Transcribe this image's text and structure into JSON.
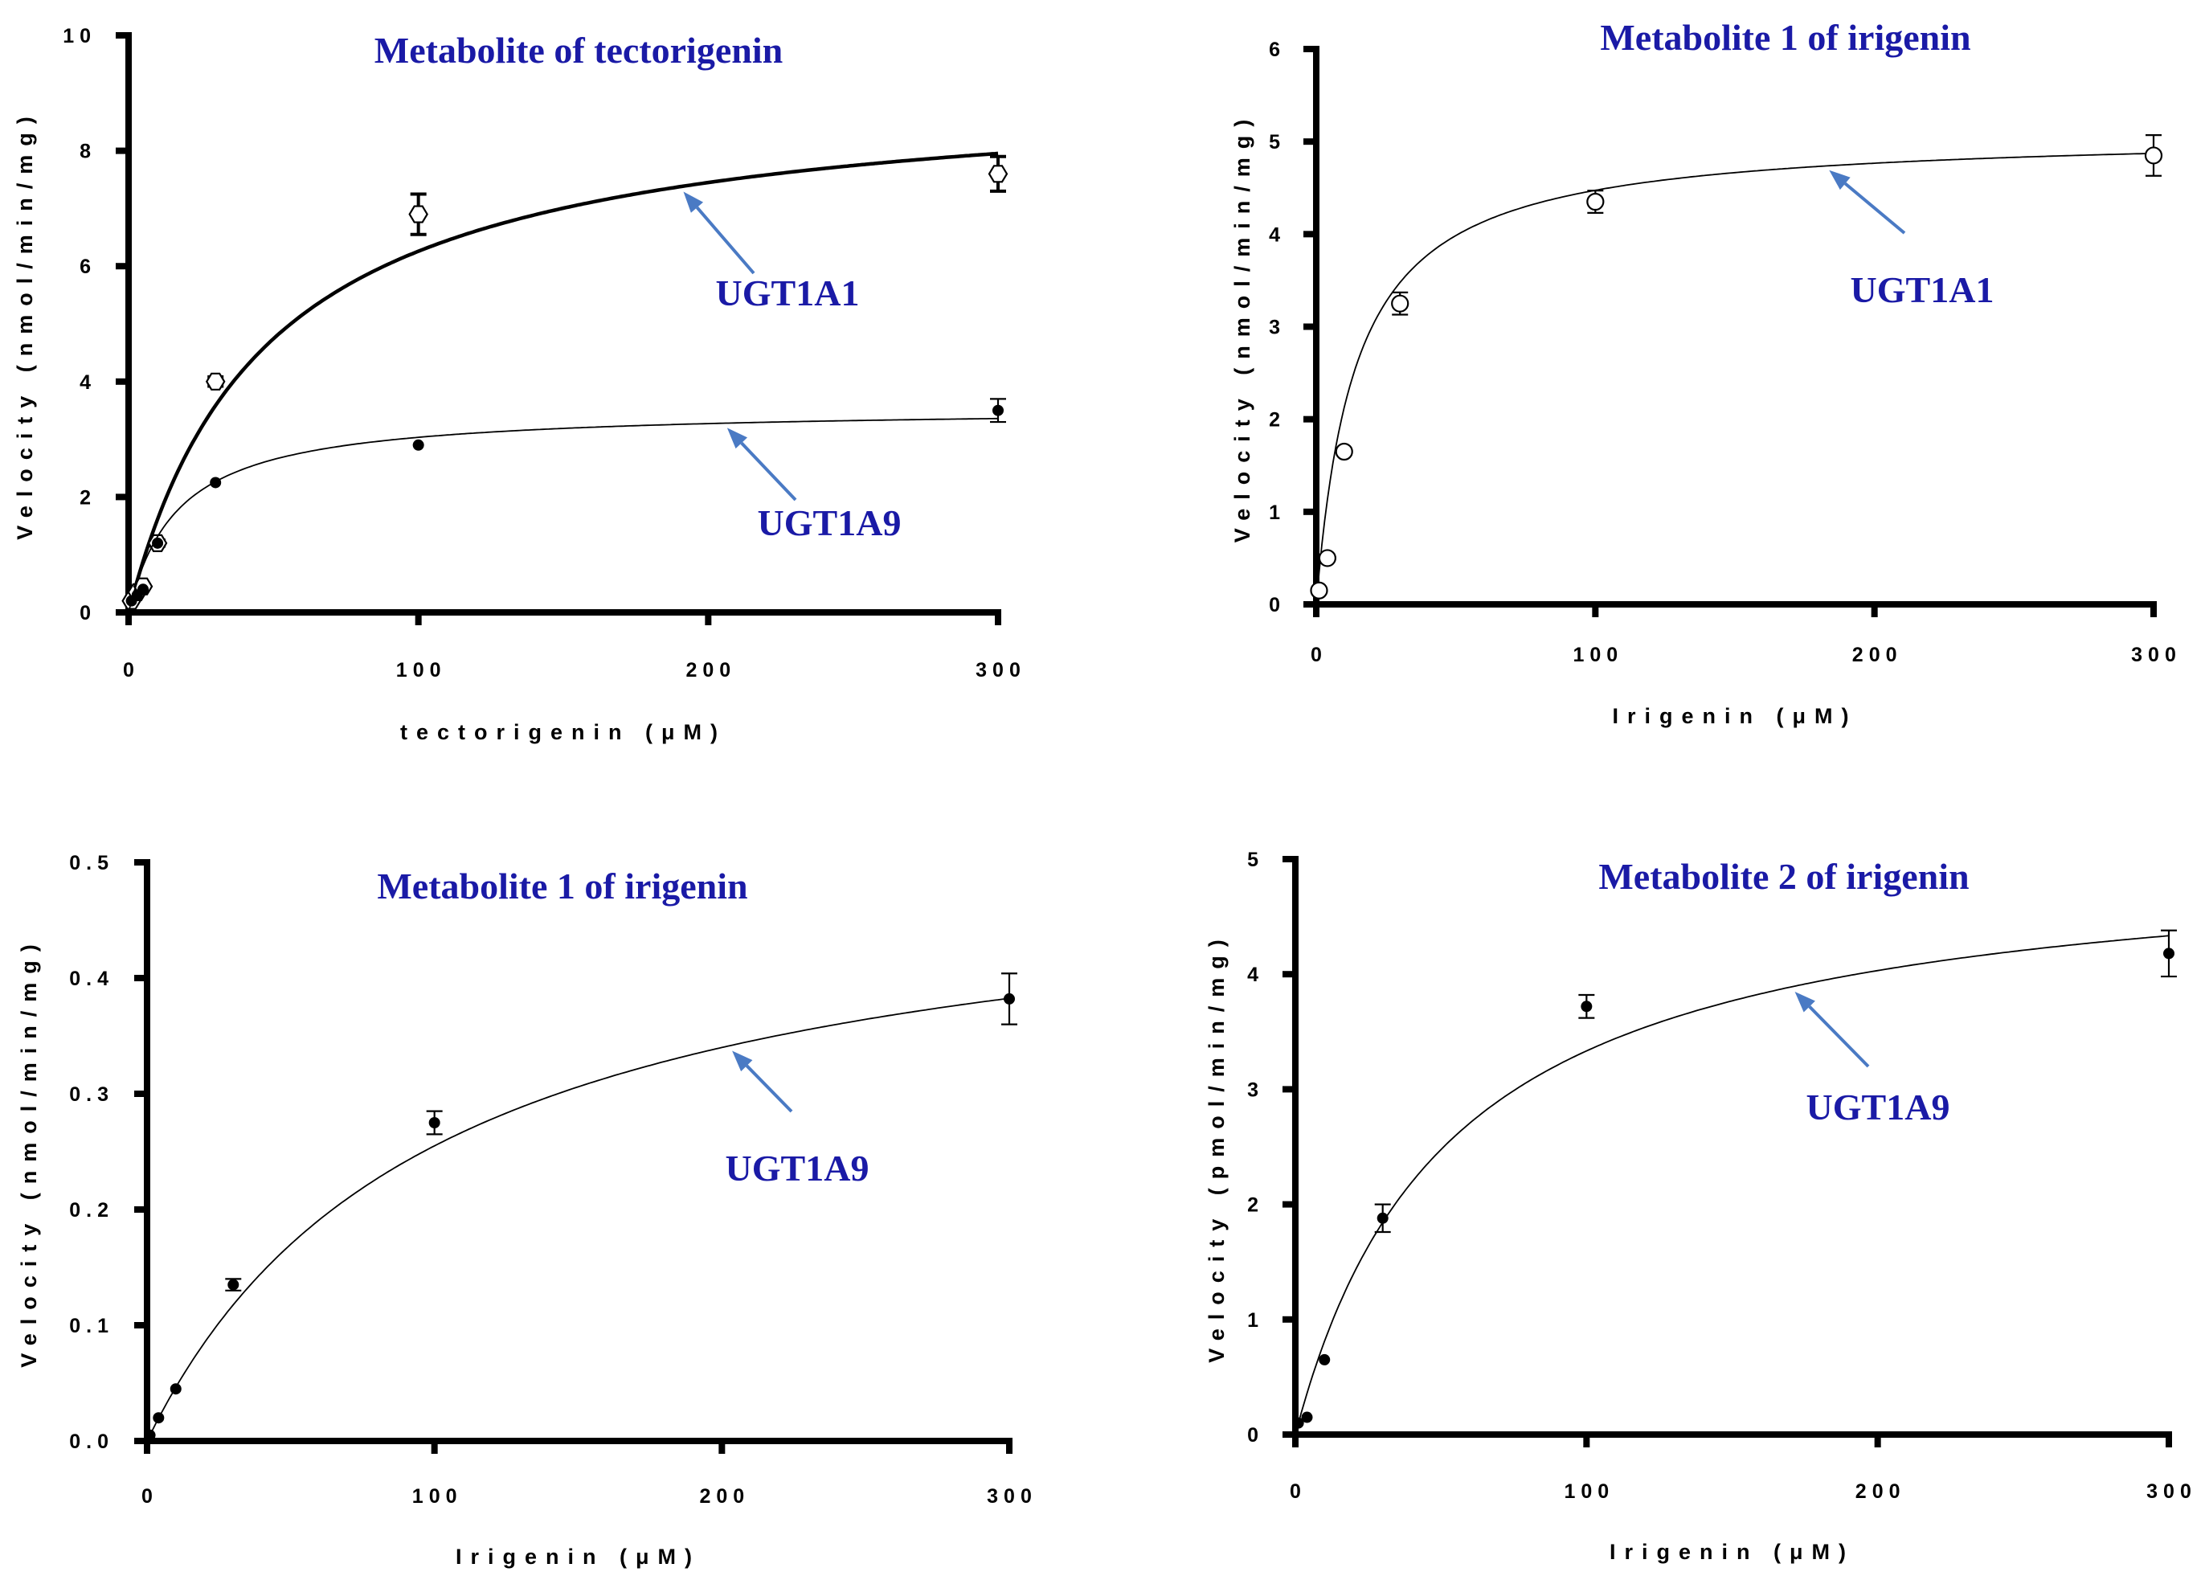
{
  "colors": {
    "title": "#1a1aa6",
    "arrow": "#4a7ac4",
    "ink": "#000000"
  },
  "chart_data": [
    {
      "type": "scatter",
      "title": "Metabolite of tectorigenin",
      "xlabel": "tectorigenin (μM)",
      "ylabel": "Velocity (nmol/min/mg)",
      "xlim": [
        0,
        300
      ],
      "ylim": [
        0,
        10
      ],
      "xticks": [
        0,
        100,
        200,
        300
      ],
      "yticks": [
        0,
        2,
        4,
        6,
        8,
        10
      ],
      "xtick_labels": [
        "0",
        "100",
        "200",
        "300"
      ],
      "ytick_labels": [
        "0",
        "2",
        "4",
        "6",
        "8",
        "10"
      ],
      "series": [
        {
          "name": "UGT1A1",
          "marker": "open-diamond",
          "fit": {
            "model": "michaelis-menten",
            "vmax": 9.2,
            "km": 47
          },
          "fit_width": "thick",
          "x": [
            1,
            3,
            5,
            10,
            30,
            100,
            300
          ],
          "y": [
            0.2,
            0.35,
            0.45,
            1.2,
            4.0,
            6.9,
            7.6
          ],
          "err": [
            0,
            0,
            0,
            0.05,
            0.08,
            0.35,
            0.3
          ]
        },
        {
          "name": "UGT1A9",
          "marker": "filled-circle",
          "fit": {
            "model": "michaelis-menten",
            "vmax": 3.55,
            "km": 17
          },
          "fit_width": "thin",
          "x": [
            1,
            3,
            5,
            10,
            30,
            100,
            300
          ],
          "y": [
            0.2,
            0.3,
            0.4,
            1.2,
            2.25,
            2.9,
            3.5
          ],
          "err": [
            0,
            0,
            0,
            0,
            0,
            0,
            0.2
          ]
        }
      ],
      "annotations": [
        {
          "text": "UGT1A1",
          "target_series": "UGT1A1",
          "target_x": 190
        },
        {
          "text": "UGT1A9",
          "target_series": "UGT1A9",
          "target_x": 205
        }
      ]
    },
    {
      "type": "scatter",
      "title": "Metabolite 1 of irigenin",
      "xlabel": "Irigenin (μM)",
      "ylabel": "Velocity (nmol/min/mg)",
      "xlim": [
        0,
        300
      ],
      "ylim": [
        0,
        6
      ],
      "xticks": [
        0,
        100,
        200,
        300
      ],
      "yticks": [
        0,
        1,
        2,
        3,
        4,
        5,
        6
      ],
      "xtick_labels": [
        "0",
        "100",
        "200",
        "300"
      ],
      "ytick_labels": [
        "0",
        "1",
        "2",
        "3",
        "4",
        "5",
        "6"
      ],
      "series": [
        {
          "name": "UGT1A1",
          "marker": "open-circle",
          "fit": {
            "model": "michaelis-menten",
            "vmax": 5.1,
            "km": 14
          },
          "fit_width": "thin",
          "x": [
            1,
            4,
            10,
            30,
            100,
            300
          ],
          "y": [
            0.15,
            0.5,
            1.65,
            3.25,
            4.35,
            4.85
          ],
          "err": [
            0,
            0,
            0,
            0.12,
            0.12,
            0.22
          ]
        }
      ],
      "annotations": [
        {
          "text": "UGT1A1",
          "target_series": "UGT1A1",
          "target_x": 182
        }
      ]
    },
    {
      "type": "scatter",
      "title": "Metabolite 1 of irigenin",
      "xlabel": "Irigenin (μM)",
      "ylabel": "Velocity (nmol/min/mg)",
      "xlim": [
        0,
        300
      ],
      "ylim": [
        0,
        0.5
      ],
      "xticks": [
        0,
        100,
        200,
        300
      ],
      "yticks": [
        0,
        0.1,
        0.2,
        0.3,
        0.4,
        0.5
      ],
      "xtick_labels": [
        "0",
        "100",
        "200",
        "300"
      ],
      "ytick_labels": [
        "0.0",
        "0.1",
        "0.2",
        "0.3",
        "0.4",
        "0.5"
      ],
      "series": [
        {
          "name": "UGT1A9",
          "marker": "filled-circle",
          "fit": {
            "model": "michaelis-menten",
            "vmax": 0.51,
            "km": 100
          },
          "fit_width": "thin",
          "x": [
            1,
            4,
            10,
            30,
            100,
            300
          ],
          "y": [
            0.005,
            0.02,
            0.045,
            0.135,
            0.275,
            0.382
          ],
          "err": [
            0,
            0,
            0,
            0.005,
            0.01,
            0.022
          ]
        }
      ],
      "annotations": [
        {
          "text": "UGT1A9",
          "target_series": "UGT1A9",
          "target_x": 202
        }
      ]
    },
    {
      "type": "scatter",
      "title": "Metabolite 2 of irigenin",
      "xlabel": "Irigenin (μM)",
      "ylabel": "Velocity (pmol/min/mg)",
      "xlim": [
        0,
        300
      ],
      "ylim": [
        0,
        5
      ],
      "xticks": [
        0,
        100,
        200,
        300
      ],
      "yticks": [
        0,
        1,
        2,
        3,
        4,
        5
      ],
      "xtick_labels": [
        "0",
        "100",
        "200",
        "300"
      ],
      "ytick_labels": [
        "0",
        "1",
        "2",
        "3",
        "4",
        "5"
      ],
      "series": [
        {
          "name": "UGT1A9",
          "marker": "filled-circle",
          "fit": {
            "model": "michaelis-menten",
            "vmax": 5.1,
            "km": 53
          },
          "fit_width": "thin",
          "x": [
            1,
            4,
            10,
            30,
            100,
            300
          ],
          "y": [
            0.1,
            0.15,
            0.65,
            1.88,
            3.72,
            4.18
          ],
          "err": [
            0,
            0,
            0,
            0.12,
            0.1,
            0.2
          ]
        }
      ],
      "annotations": [
        {
          "text": "UGT1A9",
          "target_series": "UGT1A9",
          "target_x": 170
        }
      ]
    }
  ]
}
